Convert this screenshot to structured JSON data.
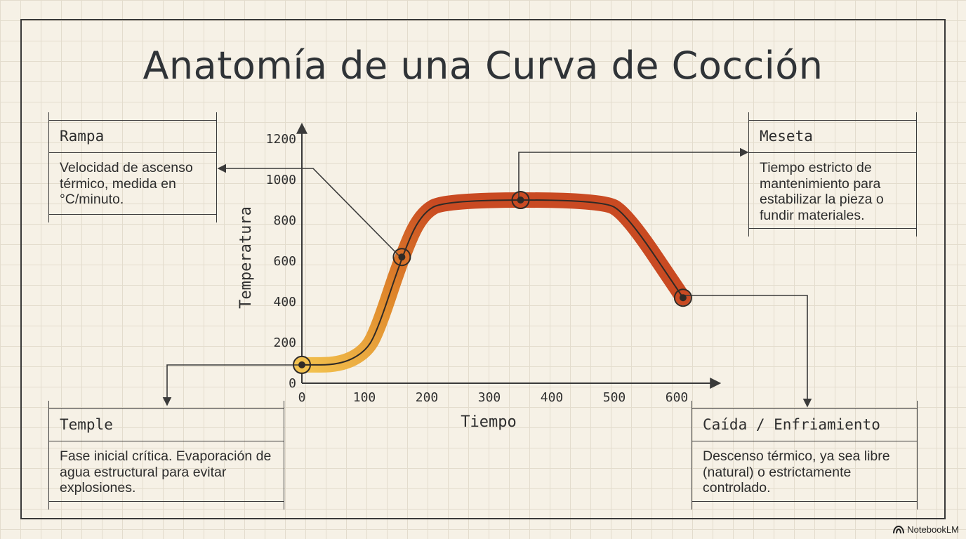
{
  "title": "Anatomía de una Curva de Cocción",
  "chart_data": {
    "type": "line",
    "xlabel": "Tiempo",
    "ylabel": "Temperatura",
    "xlim": [
      0,
      600
    ],
    "ylim": [
      0,
      1200
    ],
    "x_ticks": [
      "0",
      "100",
      "200",
      "300",
      "400",
      "500",
      "600"
    ],
    "y_ticks": [
      "0",
      "200",
      "400",
      "600",
      "800",
      "1000",
      "1200"
    ],
    "grid": true,
    "series": [
      {
        "x": [
          0,
          60,
          100,
          120,
          160,
          190,
          230,
          480,
          520,
          610
        ],
        "y": [
          90,
          90,
          150,
          250,
          620,
          830,
          900,
          900,
          830,
          420
        ]
      }
    ],
    "markers": [
      {
        "x": 0,
        "y": 90
      },
      {
        "x": 160,
        "y": 620
      },
      {
        "x": 350,
        "y": 900
      },
      {
        "x": 610,
        "y": 420
      }
    ],
    "gradient_colors": [
      "#f2c14e",
      "#e08a2c",
      "#c94a22"
    ]
  },
  "callouts": {
    "rampa": {
      "heading": "Rampa",
      "body": "Velocidad de ascenso térmico, medida en °C/minuto."
    },
    "meseta": {
      "heading": "Meseta",
      "body": "Tiempo estricto de mantenimiento para estabilizar la pieza o fundir materiales."
    },
    "temple": {
      "heading": "Temple",
      "body": "Fase inicial crítica. Evaporación de agua estructural para evitar explosiones."
    },
    "caida": {
      "heading": "Caída / Enfriamiento",
      "body": "Descenso térmico, ya sea libre (natural) o estrictamente controlado."
    }
  },
  "brand": {
    "label": "NotebookLM",
    "icon": "notebooklm-logo-icon"
  }
}
